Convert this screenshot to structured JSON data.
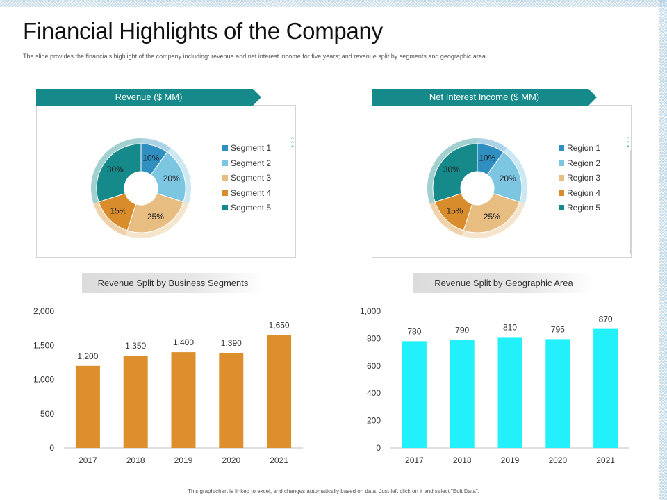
{
  "page": {
    "title": "Financial Highlights of the Company",
    "subtitle": "The slide provides the financials highlight of the company including: revenue and net interest income for five years; and revenue split by segments and geographic area",
    "footer": "This graph/chart is linked to excel, and changes automatically based on data. Just left click on it and select \"Edit Data\"."
  },
  "colors": {
    "teal_dark": "#168a8a",
    "blue": "#2e8fc0",
    "light_blue": "#7dc6e2",
    "peach": "#e7bd82",
    "orange": "#d98c2b",
    "bar_orange": "#dd8f2e",
    "bar_cyan": "#22f0fa"
  },
  "icons": {
    "scroll": "chevron-up-icon"
  },
  "revenue_pie": {
    "banner": "Revenue ($ MM)",
    "legend": [
      "Segment 1",
      "Segment 2",
      "Segment 3",
      "Segment 4",
      "Segment 5"
    ]
  },
  "nii_pie": {
    "banner": "Net Interest Income ($ MM)",
    "legend": [
      "Region 1",
      "Region 2",
      "Region 3",
      "Region 4",
      "Region 5"
    ]
  },
  "segments_bar": {
    "header": "Revenue Split by Business Segments"
  },
  "geo_bar": {
    "header": "Revenue Split by Geographic Area"
  },
  "chart_data": [
    {
      "type": "pie",
      "title": "Revenue ($ MM)",
      "labels": [
        "Segment 1",
        "Segment 2",
        "Segment 3",
        "Segment 4",
        "Segment 5"
      ],
      "values": [
        10,
        20,
        25,
        15,
        30
      ],
      "value_labels": [
        "10%",
        "20%",
        "25%",
        "15%",
        "30%"
      ],
      "donut": true
    },
    {
      "type": "pie",
      "title": "Net Interest Income ($ MM)",
      "labels": [
        "Region 1",
        "Region 2",
        "Region 3",
        "Region 4",
        "Region 5"
      ],
      "values": [
        10,
        20,
        25,
        15,
        30
      ],
      "value_labels": [
        "10%",
        "20%",
        "25%",
        "15%",
        "30%"
      ],
      "donut": true
    },
    {
      "type": "bar",
      "title": "Revenue Split by Business Segments",
      "categories": [
        "2017",
        "2018",
        "2019",
        "2020",
        "2021"
      ],
      "values": [
        1200,
        1350,
        1400,
        1390,
        1650
      ],
      "value_labels": [
        "1,200",
        "1,350",
        "1,400",
        "1,390",
        "1,650"
      ],
      "ylim": [
        0,
        2000
      ],
      "yticks": [
        0,
        500,
        1000,
        1500,
        2000
      ],
      "ytick_labels": [
        "0",
        "500",
        "1,000",
        "1,500",
        "2,000"
      ]
    },
    {
      "type": "bar",
      "title": "Revenue Split by Geographic Area",
      "categories": [
        "2017",
        "2018",
        "2019",
        "2020",
        "2021"
      ],
      "values": [
        780,
        790,
        810,
        795,
        870
      ],
      "value_labels": [
        "780",
        "790",
        "810",
        "795",
        "870"
      ],
      "ylim": [
        0,
        1000
      ],
      "yticks": [
        0,
        200,
        400,
        600,
        800,
        1000
      ],
      "ytick_labels": [
        "0",
        "200",
        "400",
        "600",
        "800",
        "1,000"
      ]
    }
  ]
}
